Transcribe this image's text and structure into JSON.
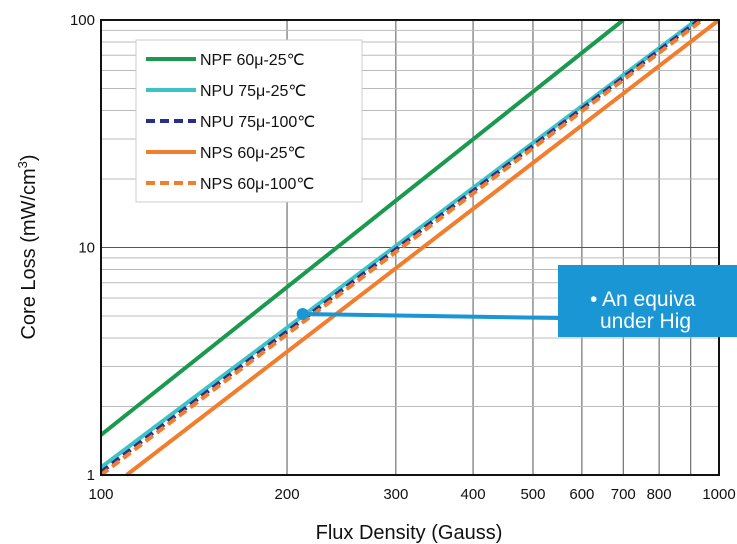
{
  "chart_data": {
    "type": "line",
    "x_scale": "log",
    "y_scale": "log",
    "xlim": [
      100,
      1000
    ],
    "ylim": [
      1,
      100
    ],
    "xlabel": "Flux Density (Gauss)",
    "ylabel": "Core Loss (mW/cm",
    "ylabel_superscript": "3",
    "ylabel_suffix": ")",
    "x_ticks": [
      {
        "value": 100,
        "label": "100"
      },
      {
        "value": 200,
        "label": "200"
      },
      {
        "value": 300,
        "label": "300"
      },
      {
        "value": 400,
        "label": "400"
      },
      {
        "value": 500,
        "label": "500"
      },
      {
        "value": 600,
        "label": "600"
      },
      {
        "value": 700,
        "label": "700"
      },
      {
        "value": 800,
        "label": "800"
      },
      {
        "value": 1000,
        "label": "1000"
      }
    ],
    "y_ticks": [
      {
        "value": 1,
        "label": "1"
      },
      {
        "value": 10,
        "label": "10"
      },
      {
        "value": 100,
        "label": "100"
      }
    ],
    "grid": true,
    "legend_position": "top-left",
    "series": [
      {
        "name": "NPF 60μ-25℃",
        "color": "#1a9a4e",
        "dash": "solid",
        "x": [
          100,
          700
        ],
        "y": [
          1.5,
          100
        ]
      },
      {
        "name": "NPU 75μ-25℃",
        "color": "#3cc3c6",
        "dash": "solid",
        "x": [
          100,
          920
        ],
        "y": [
          1.08,
          100
        ]
      },
      {
        "name": "NPU 75μ-100℃",
        "color": "#262f8e",
        "dash": "dashed",
        "x": [
          100,
          930
        ],
        "y": [
          1.03,
          100
        ]
      },
      {
        "name": "NPS 60μ-25℃",
        "color": "#f27d2c",
        "dash": "solid",
        "x": [
          110,
          1000
        ],
        "y": [
          1.0,
          100
        ]
      },
      {
        "name": "NPS 60μ-100℃",
        "color": "#f27d2c",
        "dash": "dashed",
        "x": [
          100,
          940
        ],
        "y": [
          1.0,
          100
        ]
      }
    ],
    "marker": {
      "x": 212,
      "y": 5.1,
      "color": "#1a96d4"
    }
  },
  "annotation": {
    "line1": "• An equiva",
    "line2": "under Hig",
    "color": "#1a96d4"
  }
}
